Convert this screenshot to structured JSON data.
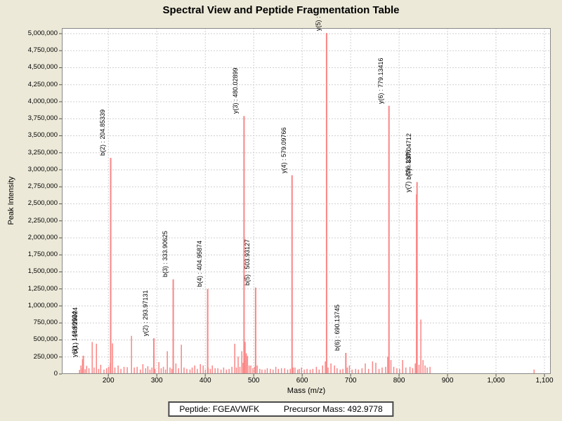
{
  "title": "Spectral View and Peptide Fragmentation Table",
  "info_bar": {
    "peptide_text": "Peptide: FGEAVWFK",
    "precursor_text": "Precursor Mass: 492.9778"
  },
  "colors": {
    "page_background": "#ece9d8",
    "plot_background": "#ffffff",
    "grid": "#cfcfcf",
    "plot_border": "#888888",
    "tick": "#555555",
    "peak": "#fb8585",
    "text": "#000000"
  },
  "chart_data": {
    "type": "bar",
    "title": "Spectral View and Peptide Fragmentation Table",
    "xlabel": "Mass (m/z)",
    "ylabel": "Peak Intensity",
    "xlim": [
      104,
      1113
    ],
    "ylim": [
      0,
      5082000
    ],
    "grid": true,
    "x_ticks": [
      200,
      300,
      400,
      500,
      600,
      700,
      800,
      900,
      1000,
      1100
    ],
    "x_tick_labels": [
      "200",
      "300",
      "400",
      "500",
      "600",
      "700",
      "800",
      "900",
      "1,000",
      "1,100"
    ],
    "y_tick_values": [
      0,
      250000,
      500000,
      750000,
      1000000,
      1250000,
      1500000,
      1750000,
      2000000,
      2250000,
      2500000,
      2750000,
      3000000,
      3250000,
      3500000,
      3750000,
      4000000,
      4250000,
      4500000,
      4750000,
      5000000
    ],
    "y_tick_labels": [
      "0",
      "250,000",
      "500,000",
      "750,000",
      "1,000,000",
      "1,250,000",
      "1,500,000",
      "1,750,000",
      "2,000,000",
      "2,250,000",
      "2,500,000",
      "2,750,000",
      "3,000,000",
      "3,250,000",
      "3,500,000",
      "3,750,000",
      "4,000,000",
      "4,250,000",
      "4,500,000",
      "4,750,000",
      "5,000,000"
    ],
    "labeled_peaks": [
      {
        "ion": "y1",
        "label": "y(1) : 146.99924",
        "mz": 146.99924,
        "intensity": 216000
      },
      {
        "ion": "b1",
        "label": "b(1) : 148.29924",
        "mz": 148.29924,
        "intensity": 268000
      },
      {
        "ion": "b2",
        "label": "b(2) : 204.85339",
        "mz": 204.85339,
        "intensity": 3175000
      },
      {
        "ion": "y2",
        "label": "y(2) : 293.97131",
        "mz": 293.97131,
        "intensity": 525000
      },
      {
        "ion": "b3",
        "label": "b(3) : 333.90625",
        "mz": 333.90625,
        "intensity": 1390000
      },
      {
        "ion": "b4",
        "label": "b(4) : 404.95874",
        "mz": 404.95874,
        "intensity": 1250000
      },
      {
        "ion": "y3",
        "label": "y(3) : 480.02899",
        "mz": 480.02899,
        "intensity": 3790000
      },
      {
        "ion": "b5",
        "label": "b(5) : 503.93127",
        "mz": 503.93127,
        "intensity": 1270000
      },
      {
        "ion": "y4",
        "label": "y(4) : 579.09766",
        "mz": 579.09766,
        "intensity": 2920000
      },
      {
        "ion": "y5",
        "label": "y(5) :",
        "mz": 650.4,
        "intensity": 5010000
      },
      {
        "ion": "b6",
        "label": "b(6) : 690.13745",
        "mz": 690.13745,
        "intensity": 310000
      },
      {
        "ion": "y6",
        "label": "y(6) : 779.13416",
        "mz": 779.13416,
        "intensity": 3940000
      },
      {
        "ion": "y7",
        "label": "y(7) : 836.1386",
        "mz": 836.1386,
        "intensity": 2640000
      },
      {
        "ion": "b7",
        "label": "b(7) : 837.04712",
        "mz": 837.04712,
        "intensity": 2820000
      }
    ],
    "background_peaks": [
      [
        140.6,
        60000
      ],
      [
        143.5,
        125000
      ],
      [
        146.2,
        80000
      ],
      [
        152.0,
        70000
      ],
      [
        155.3,
        120000
      ],
      [
        160.0,
        85000
      ],
      [
        166.7,
        470000
      ],
      [
        170.5,
        95000
      ],
      [
        175.4,
        445000
      ],
      [
        180.0,
        75000
      ],
      [
        184.3,
        135000
      ],
      [
        191.0,
        65000
      ],
      [
        196.4,
        85000
      ],
      [
        200.5,
        105000
      ],
      [
        204.0,
        160000
      ],
      [
        208.7,
        450000
      ],
      [
        213.5,
        95000
      ],
      [
        220.2,
        125000
      ],
      [
        226.0,
        75000
      ],
      [
        232.4,
        105000
      ],
      [
        239.0,
        100000
      ],
      [
        247.8,
        560000
      ],
      [
        253.5,
        95000
      ],
      [
        259.4,
        105000
      ],
      [
        266.0,
        65000
      ],
      [
        271.3,
        145000
      ],
      [
        277.0,
        85000
      ],
      [
        281.5,
        115000
      ],
      [
        285.9,
        65000
      ],
      [
        290.0,
        95000
      ],
      [
        296.3,
        75000
      ],
      [
        304.3,
        175000
      ],
      [
        309.0,
        85000
      ],
      [
        313.6,
        105000
      ],
      [
        318.0,
        65000
      ],
      [
        321.7,
        335000
      ],
      [
        327.2,
        95000
      ],
      [
        331.0,
        75000
      ],
      [
        339.4,
        155000
      ],
      [
        345.0,
        85000
      ],
      [
        350.7,
        430000
      ],
      [
        356.2,
        95000
      ],
      [
        362.0,
        75000
      ],
      [
        368.5,
        65000
      ],
      [
        373.0,
        95000
      ],
      [
        378.3,
        125000
      ],
      [
        383.6,
        75000
      ],
      [
        389.9,
        145000
      ],
      [
        395.7,
        125000
      ],
      [
        400.2,
        65000
      ],
      [
        406.0,
        95000
      ],
      [
        410.4,
        75000
      ],
      [
        414.5,
        125000
      ],
      [
        420.3,
        85000
      ],
      [
        426.0,
        85000
      ],
      [
        432.5,
        65000
      ],
      [
        438.0,
        95000
      ],
      [
        443.5,
        65000
      ],
      [
        449.2,
        75000
      ],
      [
        455.0,
        105000
      ],
      [
        460.9,
        445000
      ],
      [
        464.3,
        95000
      ],
      [
        467.9,
        255000
      ],
      [
        471.5,
        105000
      ],
      [
        475.4,
        335000
      ],
      [
        478.1,
        165000
      ],
      [
        482.3,
        470000
      ],
      [
        484.6,
        305000
      ],
      [
        487.2,
        265000
      ],
      [
        490.5,
        125000
      ],
      [
        494.0,
        125000
      ],
      [
        498.3,
        85000
      ],
      [
        502.0,
        105000
      ],
      [
        507.2,
        125000
      ],
      [
        512.5,
        75000
      ],
      [
        517.0,
        65000
      ],
      [
        523.4,
        65000
      ],
      [
        528.0,
        85000
      ],
      [
        534.2,
        75000
      ],
      [
        540.0,
        65000
      ],
      [
        545.6,
        105000
      ],
      [
        551.0,
        75000
      ],
      [
        557.3,
        85000
      ],
      [
        563.8,
        85000
      ],
      [
        570.0,
        65000
      ],
      [
        575.4,
        75000
      ],
      [
        581.5,
        95000
      ],
      [
        585.2,
        95000
      ],
      [
        590.6,
        65000
      ],
      [
        594.0,
        75000
      ],
      [
        598.6,
        95000
      ],
      [
        604.3,
        65000
      ],
      [
        610.0,
        75000
      ],
      [
        616.5,
        65000
      ],
      [
        622.0,
        75000
      ],
      [
        629.3,
        105000
      ],
      [
        635.0,
        65000
      ],
      [
        642.2,
        125000
      ],
      [
        647.8,
        185000
      ],
      [
        653.4,
        95000
      ],
      [
        659.4,
        155000
      ],
      [
        666.7,
        125000
      ],
      [
        672.0,
        85000
      ],
      [
        678.5,
        65000
      ],
      [
        684.0,
        75000
      ],
      [
        693.2,
        95000
      ],
      [
        697.5,
        125000
      ],
      [
        703.0,
        65000
      ],
      [
        710.4,
        75000
      ],
      [
        716.0,
        65000
      ],
      [
        723.5,
        85000
      ],
      [
        730.2,
        155000
      ],
      [
        737.0,
        75000
      ],
      [
        745.3,
        185000
      ],
      [
        752.0,
        165000
      ],
      [
        758.6,
        75000
      ],
      [
        765.0,
        95000
      ],
      [
        772.3,
        105000
      ],
      [
        776.5,
        255000
      ],
      [
        783.2,
        205000
      ],
      [
        789.0,
        105000
      ],
      [
        795.4,
        85000
      ],
      [
        801.0,
        75000
      ],
      [
        807.3,
        205000
      ],
      [
        814.0,
        95000
      ],
      [
        822.5,
        105000
      ],
      [
        828.0,
        85000
      ],
      [
        833.4,
        155000
      ],
      [
        841.2,
        135000
      ],
      [
        844.9,
        800000
      ],
      [
        849.3,
        205000
      ],
      [
        853.6,
        125000
      ],
      [
        858.0,
        95000
      ],
      [
        863.8,
        105000
      ],
      [
        1078.6,
        65000
      ]
    ]
  }
}
